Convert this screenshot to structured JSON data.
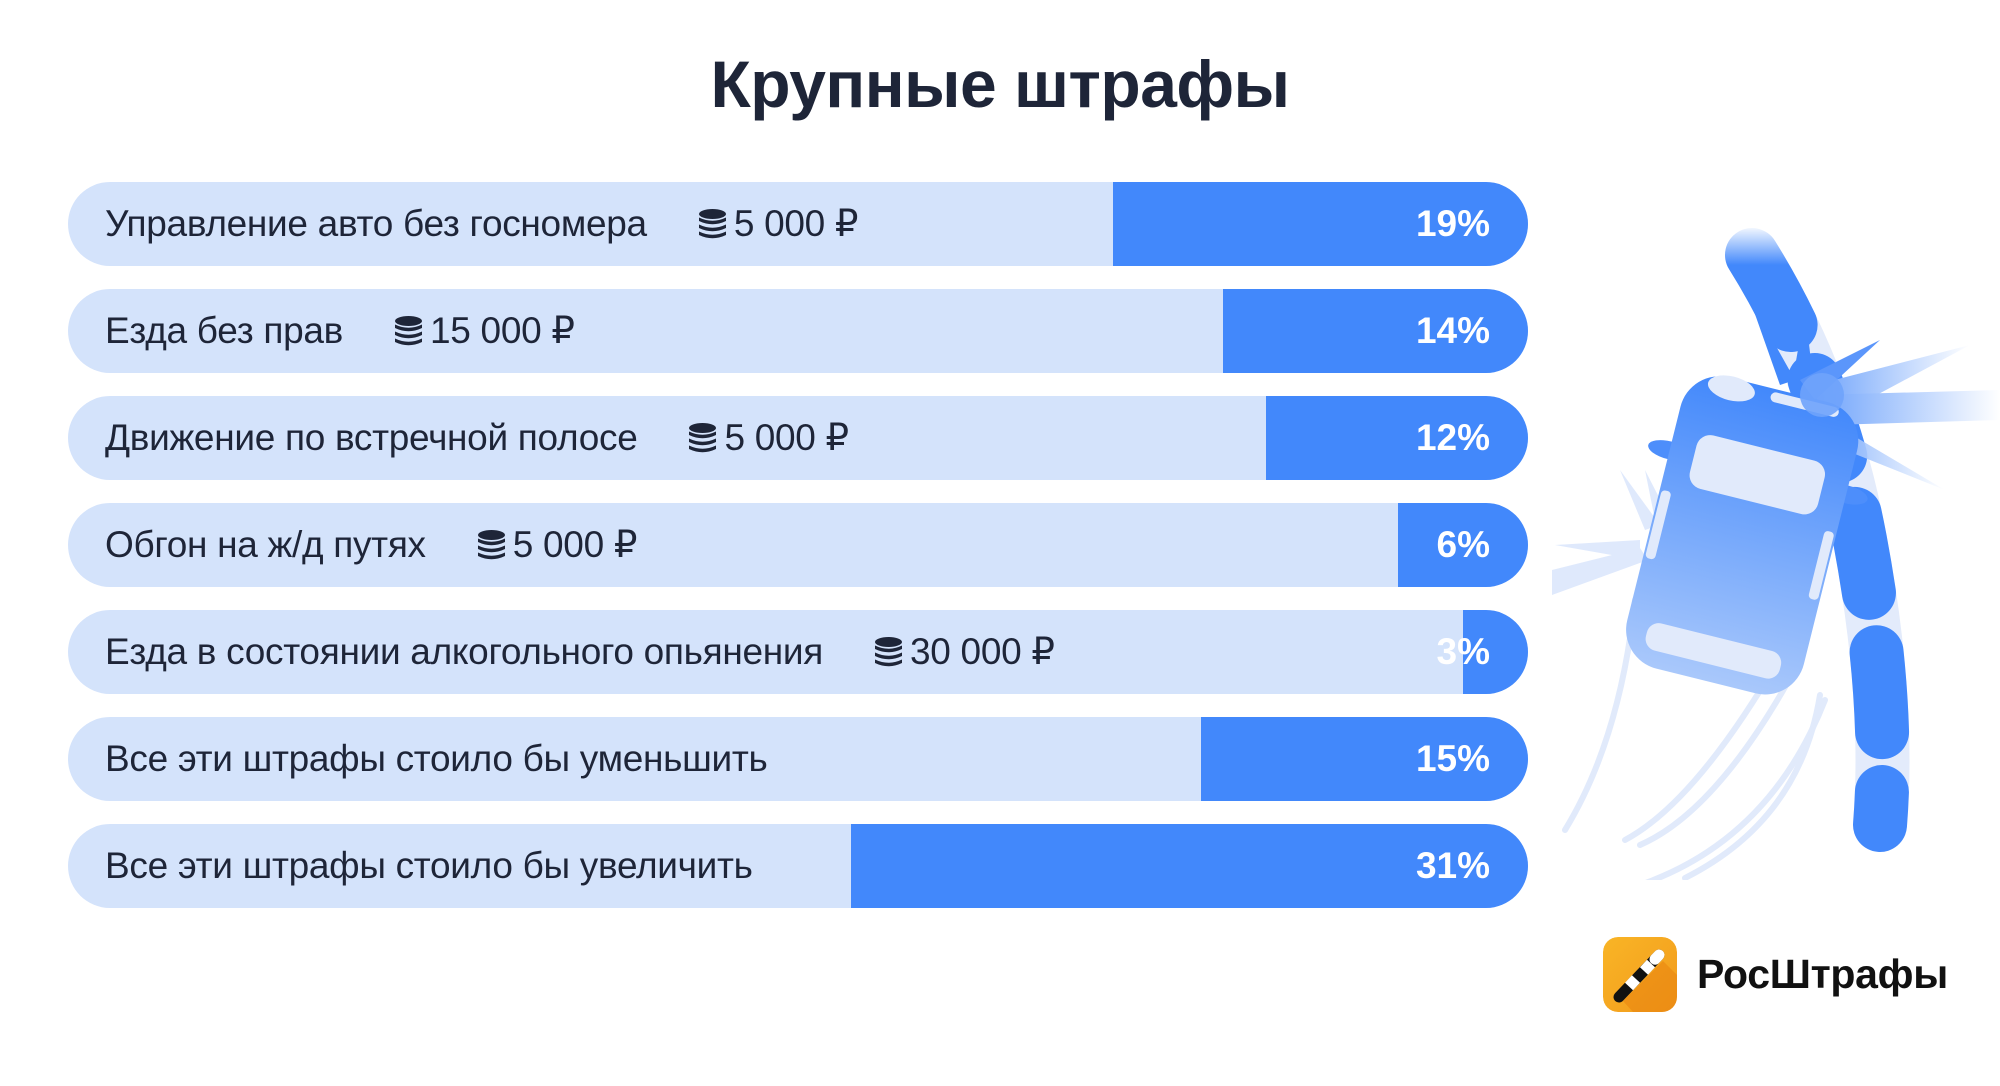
{
  "title": "Крупные штрафы",
  "colors": {
    "bar_track": "#d4e3fb",
    "bar_fill": "#4288fb",
    "title_text": "#1e2538",
    "pct_text": "#ffffff",
    "logo_yellow": "#f9b526",
    "logo_orange": "#f29a1c"
  },
  "rows": [
    {
      "label": "Управление авто без госномера",
      "fine": "5 000 ₽",
      "pct": "19%",
      "fill_width": 415
    },
    {
      "label": "Езда без прав",
      "fine": "15 000 ₽",
      "pct": "14%",
      "fill_width": 305
    },
    {
      "label": "Движение по встречной полосе",
      "fine": "5 000 ₽",
      "pct": "12%",
      "fill_width": 262
    },
    {
      "label": "Обгон на ж/д путях",
      "fine": "5 000 ₽",
      "pct": "6%",
      "fill_width": 130
    },
    {
      "label": "Езда в состоянии алкогольного опьянения",
      "fine": "30 000 ₽",
      "pct": "3%",
      "fill_width": 65
    },
    {
      "label": "Все эти штрафы стоило бы уменьшить",
      "fine": null,
      "pct": "15%",
      "fill_width": 327
    },
    {
      "label": "Все эти штрафы стоило бы увеличить",
      "fine": null,
      "pct": "31%",
      "fill_width": 677
    }
  ],
  "icons": {
    "fine_icon": "coin-stack-icon",
    "illustration": "car-crash-barrier-illustration",
    "logo_icon": "barrier-logo-icon"
  },
  "brand": {
    "name": "РосШтрафы"
  },
  "chart_data": {
    "type": "bar",
    "orientation": "horizontal",
    "title": "Крупные штрафы",
    "categories": [
      "Управление авто без госномера (5 000 ₽)",
      "Езда без прав (15 000 ₽)",
      "Движение по встречной полосе (5 000 ₽)",
      "Обгон на ж/д путях (5 000 ₽)",
      "Езда в состоянии алкогольного опьянения (30 000 ₽)",
      "Все эти штрафы стоило бы уменьшить",
      "Все эти штрафы стоило бы увеличить"
    ],
    "fines_rub": [
      5000,
      15000,
      5000,
      5000,
      30000,
      null,
      null
    ],
    "values": [
      19,
      14,
      12,
      6,
      3,
      15,
      31
    ],
    "unit": "%",
    "xlabel": "",
    "ylabel": "",
    "grid": false,
    "legend": null
  }
}
